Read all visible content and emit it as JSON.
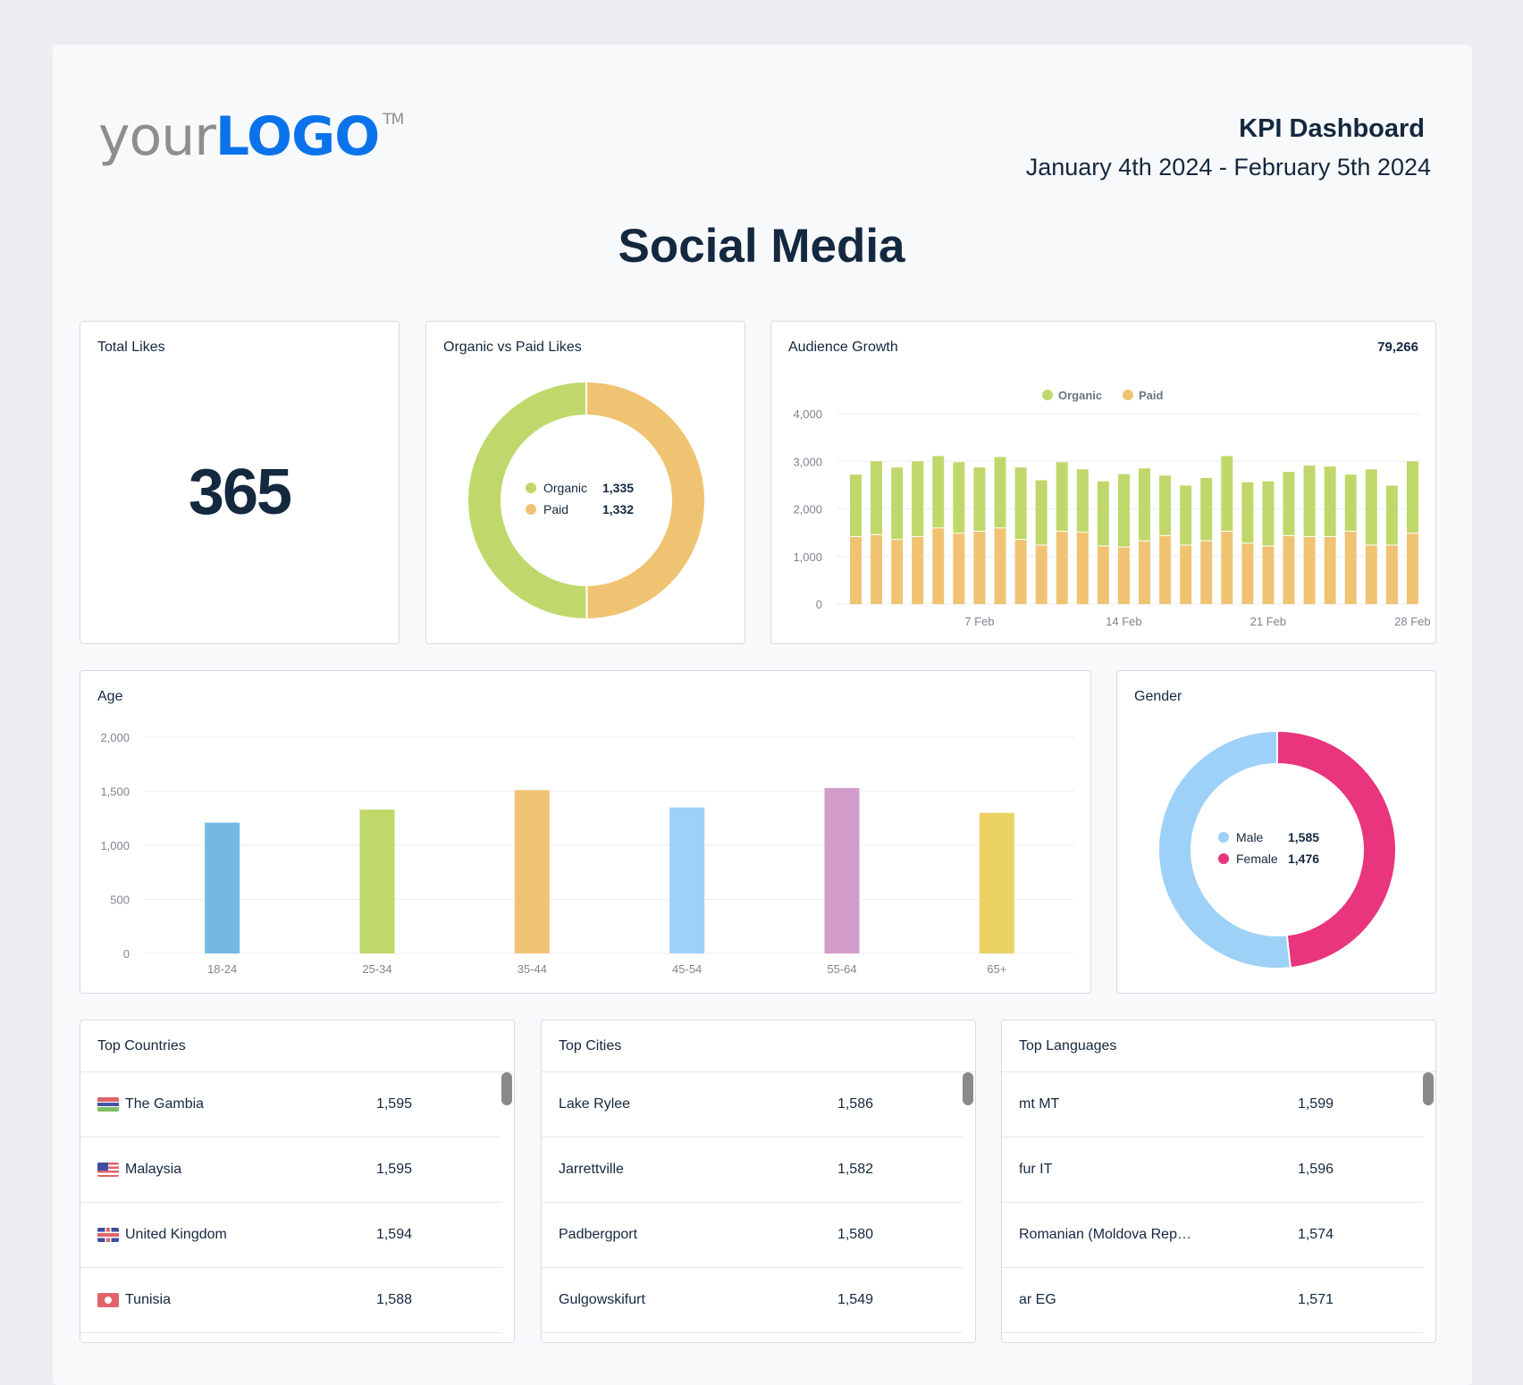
{
  "logo": {
    "your": "your",
    "brand": "LOGO",
    "tm": "TM"
  },
  "header": {
    "title": "KPI Dashboard",
    "date_range": "January 4th 2024 - February 5th 2024"
  },
  "page_title": "Social Media",
  "total_likes": {
    "title": "Total Likes",
    "value": "365"
  },
  "organic_paid": {
    "title": "Organic vs Paid Likes",
    "items": [
      {
        "label": "Organic",
        "value": "1,335",
        "num": 1335,
        "color": "#c0d86b"
      },
      {
        "label": "Paid",
        "value": "1,332",
        "num": 1332,
        "color": "#f0c373"
      }
    ]
  },
  "audience": {
    "title": "Audience Growth",
    "total": "79,266"
  },
  "age": {
    "title": "Age"
  },
  "gender": {
    "title": "Gender",
    "items": [
      {
        "label": "Male",
        "value": "1,585",
        "num": 1585,
        "color": "#9dd1f8"
      },
      {
        "label": "Female",
        "value": "1,476",
        "num": 1476,
        "color": "#e8357d"
      }
    ]
  },
  "chart_data": [
    {
      "type": "bar",
      "stacked": true,
      "title": "Audience Growth",
      "x": [
        "1 Feb",
        "2 Feb",
        "3 Feb",
        "4 Feb",
        "5 Feb",
        "6 Feb",
        "7 Feb",
        "8 Feb",
        "9 Feb",
        "10 Feb",
        "11 Feb",
        "12 Feb",
        "13 Feb",
        "14 Feb",
        "15 Feb",
        "16 Feb",
        "17 Feb",
        "18 Feb",
        "19 Feb",
        "20 Feb",
        "21 Feb",
        "22 Feb",
        "23 Feb",
        "24 Feb",
        "25 Feb",
        "26 Feb",
        "27 Feb",
        "28 Feb"
      ],
      "xtick_labels": [
        "7 Feb",
        "14 Feb",
        "21 Feb",
        "28 Feb"
      ],
      "ylim": [
        0,
        4000
      ],
      "yticks": [
        "0",
        "1,000",
        "2,000",
        "3,000",
        "4,000"
      ],
      "legend": "top-center",
      "series": [
        {
          "name": "Paid",
          "color": "#f0c373",
          "values": [
            1410,
            1450,
            1350,
            1410,
            1590,
            1480,
            1520,
            1590,
            1350,
            1230,
            1520,
            1500,
            1210,
            1190,
            1320,
            1430,
            1230,
            1320,
            1520,
            1270,
            1210,
            1430,
            1410,
            1410,
            1520,
            1230,
            1230,
            1480
          ]
        },
        {
          "name": "Organic",
          "color": "#c0d86b",
          "values": [
            1310,
            1550,
            1520,
            1590,
            1520,
            1500,
            1350,
            1500,
            1520,
            1370,
            1460,
            1330,
            1370,
            1540,
            1530,
            1270,
            1260,
            1330,
            1590,
            1290,
            1370,
            1350,
            1500,
            1480,
            1200,
            1600,
            1260,
            1520
          ]
        }
      ]
    },
    {
      "type": "bar",
      "title": "Age",
      "categories": [
        "18-24",
        "25-34",
        "35-44",
        "45-54",
        "55-64",
        "65+"
      ],
      "values": [
        1210,
        1330,
        1510,
        1350,
        1530,
        1300
      ],
      "colors": [
        "#74b9e2",
        "#c0d86b",
        "#f0c373",
        "#9dd1f8",
        "#d19cc9",
        "#ecd263"
      ],
      "ylim": [
        0,
        2000
      ],
      "yticks": [
        "0",
        "500",
        "1,000",
        "1,500",
        "2,000"
      ]
    }
  ],
  "countries": {
    "title": "Top Countries",
    "rows": [
      {
        "name": "The Gambia",
        "value": "1,595",
        "flag": "gambia-flag-icon"
      },
      {
        "name": "Malaysia",
        "value": "1,595",
        "flag": "malaysia-flag-icon"
      },
      {
        "name": "United Kingdom",
        "value": "1,594",
        "flag": "uk-flag-icon"
      },
      {
        "name": "Tunisia",
        "value": "1,588",
        "flag": "tunisia-flag-icon"
      }
    ]
  },
  "cities": {
    "title": "Top Cities",
    "rows": [
      {
        "name": "Lake Rylee",
        "value": "1,586"
      },
      {
        "name": "Jarrettville",
        "value": "1,582"
      },
      {
        "name": "Padbergport",
        "value": "1,580"
      },
      {
        "name": "Gulgowskifurt",
        "value": "1,549"
      }
    ]
  },
  "languages": {
    "title": "Top Languages",
    "rows": [
      {
        "name": "mt MT",
        "value": "1,599"
      },
      {
        "name": "fur IT",
        "value": "1,596"
      },
      {
        "name": "Romanian (Moldova Rep…",
        "value": "1,574"
      },
      {
        "name": "ar EG",
        "value": "1,571"
      }
    ]
  }
}
